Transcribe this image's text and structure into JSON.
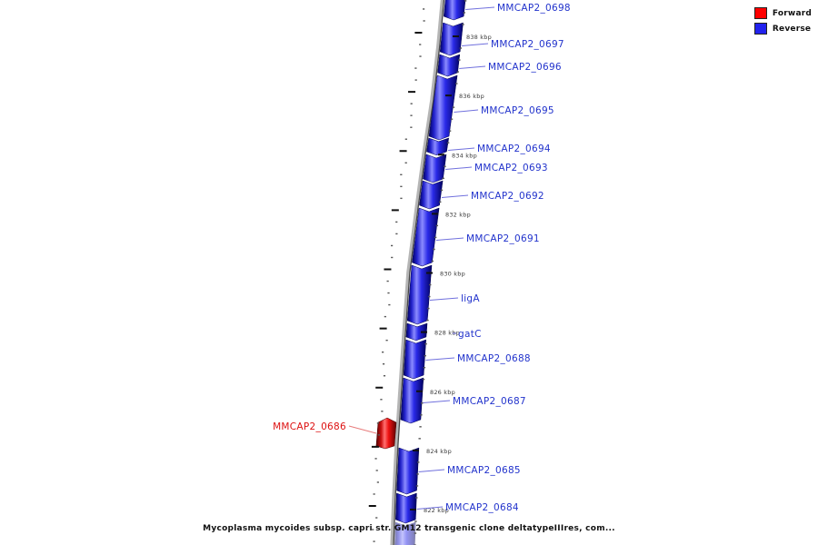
{
  "title": "Mycoplasma mycoides subsp. capri str. GM12 transgenic clone deltatypeIIIres, com...",
  "legend": {
    "forward_label": "Forward",
    "reverse_label": "Reverse",
    "forward_color": "#ff0000",
    "reverse_color": "#2222ee"
  },
  "ruler": {
    "unit": "kbp",
    "tick_labels": [
      "838 kbp",
      "836 kbp",
      "834 kbp",
      "832 kbp",
      "830 kbp",
      "828 kbp",
      "826 kbp",
      "824 kbp",
      "822 kbp"
    ]
  },
  "genes": [
    {
      "label": "MMCAP2_0698",
      "strand": "reverse"
    },
    {
      "label": "MMCAP2_0697",
      "strand": "reverse"
    },
    {
      "label": "MMCAP2_0696",
      "strand": "reverse"
    },
    {
      "label": "MMCAP2_0695",
      "strand": "reverse"
    },
    {
      "label": "MMCAP2_0694",
      "strand": "reverse"
    },
    {
      "label": "MMCAP2_0693",
      "strand": "reverse"
    },
    {
      "label": "MMCAP2_0692",
      "strand": "reverse"
    },
    {
      "label": "MMCAP2_0691",
      "strand": "reverse"
    },
    {
      "label": "ligA",
      "strand": "reverse"
    },
    {
      "label": "gatC",
      "strand": "reverse"
    },
    {
      "label": "MMCAP2_0688",
      "strand": "reverse"
    },
    {
      "label": "MMCAP2_0687",
      "strand": "reverse"
    },
    {
      "label": "MMCAP2_0686",
      "strand": "forward"
    },
    {
      "label": "MMCAP2_0685",
      "strand": "reverse"
    },
    {
      "label": "MMCAP2_0684",
      "strand": "reverse"
    }
  ],
  "colors": {
    "gene_reverse": "#2222ee",
    "gene_forward": "#ee1111",
    "backbone": "#b5b5b5",
    "tick": "#3c3c3c"
  }
}
